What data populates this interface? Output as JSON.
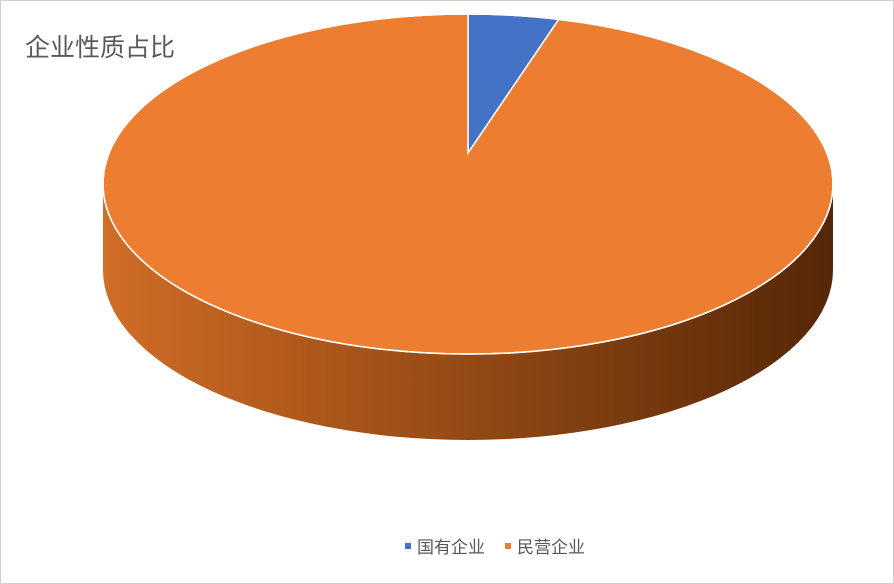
{
  "chart_data": {
    "type": "pie",
    "style": "3d",
    "title": "企业性质占比",
    "categories": [
      "国有企业",
      "民营企业"
    ],
    "values": [
      4,
      96
    ],
    "unit": "percent",
    "colors": [
      "#4472c4",
      "#ed7d31"
    ],
    "legend": "bottom"
  }
}
